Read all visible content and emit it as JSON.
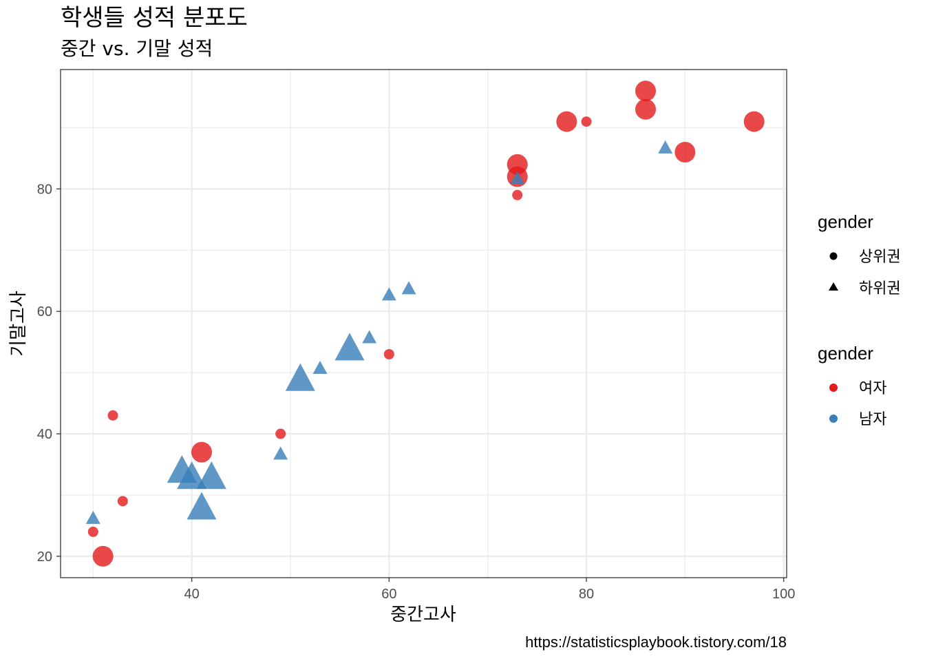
{
  "chart_data": {
    "type": "scatter",
    "title": "학생들 성적 분포도",
    "subtitle": "중간 vs. 기말 성적",
    "xlabel": "중간고사",
    "ylabel": "기말고사",
    "caption": "https://statisticsplaybook.tistory.com/18",
    "xlim": [
      26.7,
      100.3
    ],
    "ylim": [
      16.5,
      99.5
    ],
    "x_ticks": [
      40,
      60,
      80,
      100
    ],
    "y_ticks": [
      20,
      40,
      60,
      80
    ],
    "grid": true,
    "legend_position": "right",
    "legends": [
      {
        "title": "gender",
        "kind": "shape",
        "entries": [
          {
            "label": "상위권",
            "shape": "circle"
          },
          {
            "label": "하위권",
            "shape": "triangle"
          }
        ]
      },
      {
        "title": "gender",
        "kind": "color",
        "entries": [
          {
            "label": "여자",
            "color": "#E41A1C"
          },
          {
            "label": "남자",
            "color": "#377EB8"
          }
        ]
      }
    ],
    "colors": {
      "여자": "#E41A1C",
      "남자": "#377EB8"
    },
    "series": [
      {
        "name": "여자",
        "shape": "circle",
        "points": [
          {
            "x": 31,
            "y": 20,
            "size": 3
          },
          {
            "x": 30,
            "y": 24,
            "size": 1
          },
          {
            "x": 33,
            "y": 29,
            "size": 1
          },
          {
            "x": 32,
            "y": 43,
            "size": 1
          },
          {
            "x": 41,
            "y": 37,
            "size": 3
          },
          {
            "x": 49,
            "y": 40,
            "size": 1
          },
          {
            "x": 60,
            "y": 53,
            "size": 1
          },
          {
            "x": 73,
            "y": 79,
            "size": 1
          },
          {
            "x": 73,
            "y": 82,
            "size": 3
          },
          {
            "x": 73,
            "y": 84,
            "size": 3
          },
          {
            "x": 78,
            "y": 91,
            "size": 3
          },
          {
            "x": 80,
            "y": 91,
            "size": 1
          },
          {
            "x": 86,
            "y": 93,
            "size": 3
          },
          {
            "x": 86,
            "y": 96,
            "size": 3
          },
          {
            "x": 90,
            "y": 86,
            "size": 3
          },
          {
            "x": 97,
            "y": 91,
            "size": 3
          }
        ]
      },
      {
        "name": "남자",
        "shape": "triangle",
        "points": [
          {
            "x": 30,
            "y": 26,
            "size": 1
          },
          {
            "x": 39,
            "y": 33.5,
            "size": 3
          },
          {
            "x": 40,
            "y": 32.5,
            "size": 3
          },
          {
            "x": 42,
            "y": 32.5,
            "size": 3
          },
          {
            "x": 41,
            "y": 27.5,
            "size": 3
          },
          {
            "x": 49,
            "y": 36.5,
            "size": 1
          },
          {
            "x": 51,
            "y": 48.5,
            "size": 3
          },
          {
            "x": 53,
            "y": 50.5,
            "size": 1
          },
          {
            "x": 56,
            "y": 53.5,
            "size": 3
          },
          {
            "x": 58,
            "y": 55.5,
            "size": 1
          },
          {
            "x": 60,
            "y": 62.5,
            "size": 1
          },
          {
            "x": 62,
            "y": 63.5,
            "size": 1
          },
          {
            "x": 73,
            "y": 81.5,
            "size": 1
          },
          {
            "x": 88,
            "y": 86.5,
            "size": 1
          }
        ]
      }
    ]
  }
}
